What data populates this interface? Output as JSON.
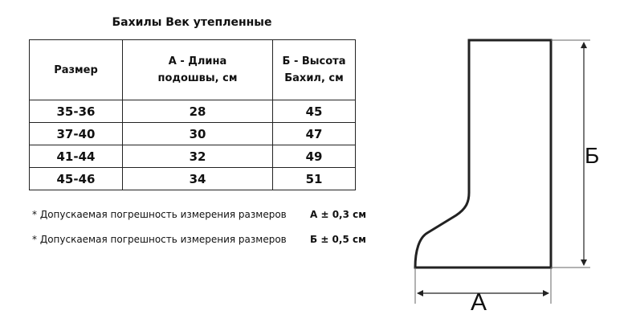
{
  "title": "Бахилы Век утепленные",
  "table": {
    "headers": [
      "Размер",
      "А -  Длина подошвы, см",
      "Б - Высота Бахил, см"
    ],
    "rows": [
      [
        "35-36",
        "28",
        "45"
      ],
      [
        "37-40",
        "30",
        "47"
      ],
      [
        "41-44",
        "32",
        "49"
      ],
      [
        "45-46",
        "34",
        "51"
      ]
    ]
  },
  "notes": [
    {
      "text": "* Допускаемая погрешность измерения размеров",
      "value": "А ± 0,3 см"
    },
    {
      "text": "* Допускаемая погрешность измерения размеров",
      "value": "Б ± 0,5 см"
    }
  ],
  "diagram": {
    "label_a": "А",
    "label_b": "Б"
  }
}
